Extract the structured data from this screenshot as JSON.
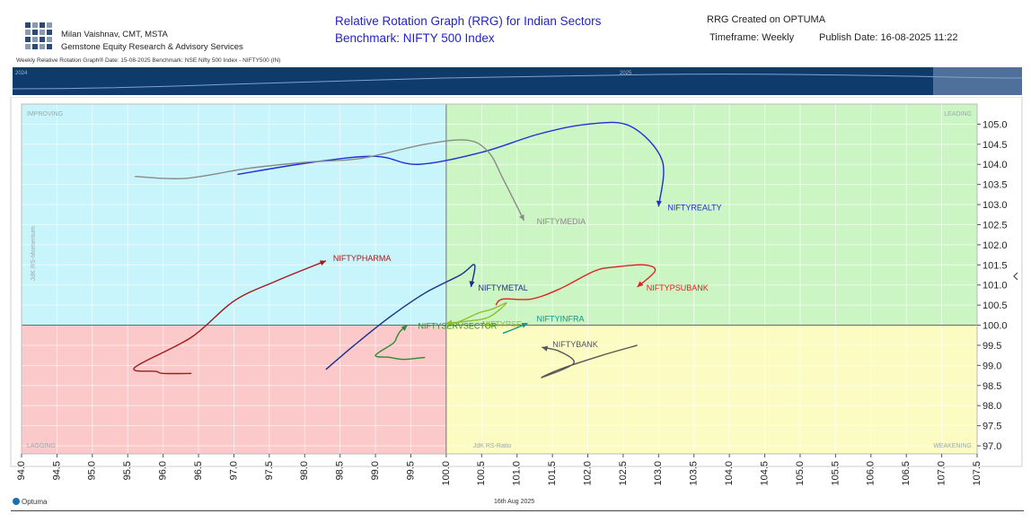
{
  "header": {
    "author_name": "Milan Vaishnav, CMT, MSTA",
    "company": "Gemstone Equity Research & Advisory Services",
    "title_line1": "Relative Rotation Graph (RRG) for Indian Sectors",
    "title_line2": "Benchmark: NIFTY 500 Index",
    "created": "RRG Created on OPTUMA",
    "timeframe": "Timeframe: Weekly",
    "publish_date": "Publish Date: 16-08-2025 11:22",
    "subheader": "Weekly Relative Rotation Graph®   Date: 15-08-2025  Benchmark: NSE Nifty 500 Index - NIFTY500 (IN)"
  },
  "timeline": {
    "labels": [
      "2024",
      "2025"
    ]
  },
  "footer": {
    "date": "16th Aug 2025",
    "brand": "Optuma"
  },
  "colors": {
    "improving": "#c8f4fb",
    "leading": "#ccf5c4",
    "lagging": "#fbc9c9",
    "weakening": "#fbfbc2",
    "timeline_bg": "#0f3a6c"
  },
  "chart_data": {
    "type": "scatter",
    "quadrants": {
      "improving": "IMPROVING",
      "leading": "LEADING",
      "lagging": "LAGGING",
      "weakening": "WEAKENING"
    },
    "xlabel": "JdK RS-Ratio",
    "ylabel": "JdK RS-Momentum",
    "xlim": [
      94.0,
      107.5
    ],
    "ylim": [
      96.8,
      105.5
    ],
    "center": [
      100.0,
      100.0
    ],
    "x_ticks": [
      94.0,
      94.5,
      95.0,
      95.5,
      96.0,
      96.5,
      97.0,
      97.5,
      98.0,
      98.5,
      99.0,
      99.5,
      100.0,
      100.5,
      101.0,
      101.5,
      102.0,
      102.5,
      103.0,
      103.5,
      104.0,
      104.5,
      105.0,
      105.5,
      106.0,
      106.5,
      107.0,
      107.5
    ],
    "x_tick_labels": [
      "94.0",
      "94.5",
      "95.0",
      "95.5",
      "96.0",
      "96.5",
      "97.0",
      "97.5",
      "98.0",
      "98.5",
      "99.0",
      "99.5",
      "100.0",
      "100.5",
      "101.0",
      "101.5",
      "102.0",
      "102.5",
      "103.0",
      "103.5",
      "104.0",
      "104.5",
      "105.0",
      "105.5",
      "106.0",
      "106.5",
      "107.0",
      "107.5"
    ],
    "y_ticks": [
      97.0,
      97.5,
      98.0,
      98.5,
      99.0,
      99.5,
      100.0,
      100.5,
      101.0,
      101.5,
      102.0,
      102.5,
      103.0,
      103.5,
      104.0,
      104.5,
      105.0
    ],
    "y_tick_labels": [
      "97.0",
      "97.5",
      "98.0",
      "98.5",
      "99.0",
      "99.5",
      "100.0",
      "100.5",
      "101.0",
      "101.5",
      "102.0",
      "102.5",
      "103.0",
      "103.5",
      "104.0",
      "104.5",
      "105.0"
    ],
    "grid": true,
    "series": [
      {
        "name": "NIFTYREALTY",
        "color": "#1f2fd6",
        "points": [
          [
            97.05,
            103.75
          ],
          [
            98.1,
            104.05
          ],
          [
            99.0,
            104.2
          ],
          [
            99.6,
            104.0
          ],
          [
            100.5,
            104.3
          ],
          [
            101.3,
            104.75
          ],
          [
            102.0,
            105.0
          ],
          [
            102.6,
            104.95
          ],
          [
            103.05,
            104.1
          ],
          [
            103.0,
            102.95
          ]
        ]
      },
      {
        "name": "NIFTYMEDIA",
        "color": "#8a8a8a",
        "points": [
          [
            95.6,
            103.7
          ],
          [
            96.3,
            103.65
          ],
          [
            97.2,
            103.9
          ],
          [
            98.0,
            104.05
          ],
          [
            98.8,
            104.15
          ],
          [
            99.7,
            104.5
          ],
          [
            100.3,
            104.6
          ],
          [
            100.6,
            104.3
          ],
          [
            100.8,
            103.65
          ],
          [
            101.1,
            102.6
          ]
        ]
      },
      {
        "name": "NIFTYPHARMA",
        "color": "#a01a1a",
        "points": [
          [
            96.4,
            98.8
          ],
          [
            96.0,
            98.8
          ],
          [
            95.9,
            98.85
          ],
          [
            95.6,
            98.95
          ],
          [
            96.4,
            99.7
          ],
          [
            97.0,
            100.6
          ],
          [
            97.6,
            101.1
          ],
          [
            98.3,
            101.6
          ]
        ]
      },
      {
        "name": "NIFTYMETAL",
        "color": "#1b2d8c",
        "points": [
          [
            98.3,
            98.9
          ],
          [
            98.7,
            99.5
          ],
          [
            99.2,
            100.2
          ],
          [
            99.7,
            100.8
          ],
          [
            100.2,
            101.25
          ],
          [
            100.4,
            101.5
          ],
          [
            100.35,
            100.95
          ]
        ]
      },
      {
        "name": "NIFTYPSUBANK",
        "color": "#e02020",
        "points": [
          [
            100.7,
            100.5
          ],
          [
            100.8,
            100.65
          ],
          [
            101.2,
            100.65
          ],
          [
            101.6,
            100.9
          ],
          [
            102.1,
            101.35
          ],
          [
            102.4,
            101.45
          ],
          [
            102.8,
            101.5
          ],
          [
            102.95,
            101.35
          ],
          [
            102.7,
            100.95
          ]
        ]
      },
      {
        "name": "NIFTYSERVSECTOR",
        "color": "#2c8a2c",
        "points": [
          [
            99.7,
            99.2
          ],
          [
            99.4,
            99.15
          ],
          [
            99.2,
            99.2
          ],
          [
            99.0,
            99.25
          ],
          [
            99.25,
            99.55
          ],
          [
            99.3,
            99.7
          ],
          [
            99.35,
            99.85
          ],
          [
            99.45,
            100.0
          ]
        ]
      },
      {
        "name": "NIFTYPSE",
        "color": "#8fbf2a",
        "points": [
          [
            100.0,
            100.0
          ],
          [
            100.2,
            100.1
          ],
          [
            100.45,
            100.3
          ],
          [
            100.65,
            100.4
          ],
          [
            100.85,
            100.55
          ],
          [
            100.6,
            100.2
          ],
          [
            100.3,
            100.1
          ],
          [
            100.0,
            100.05
          ]
        ]
      },
      {
        "name": "NIFTYINFRA",
        "color": "#109488",
        "points": [
          [
            100.8,
            99.8
          ],
          [
            100.95,
            99.9
          ],
          [
            101.15,
            100.05
          ]
        ]
      },
      {
        "name": "NIFTYBANK",
        "color": "#555555",
        "points": [
          [
            102.7,
            99.5
          ],
          [
            102.2,
            99.25
          ],
          [
            101.6,
            98.9
          ],
          [
            101.35,
            98.7
          ],
          [
            101.8,
            99.05
          ],
          [
            101.6,
            99.35
          ],
          [
            101.35,
            99.45
          ]
        ]
      }
    ]
  }
}
